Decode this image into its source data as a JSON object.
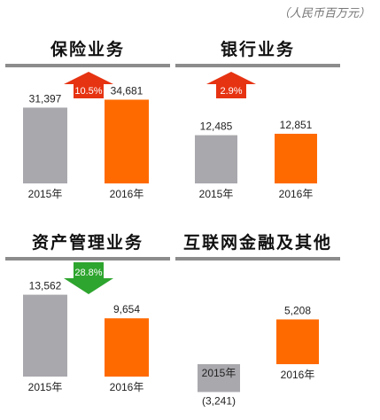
{
  "unit": "（人民币百万元）",
  "chart_data": [
    {
      "type": "bar",
      "title": "保险业务",
      "categories": [
        "2015年",
        "2016年"
      ],
      "values": [
        31397,
        34681
      ],
      "value_labels": [
        "31,397",
        "34,681"
      ],
      "growth": {
        "label": "10.5%",
        "direction": "up",
        "color": "#e63312"
      },
      "ylim": [
        0,
        40000
      ]
    },
    {
      "type": "bar",
      "title": "银行业务",
      "categories": [
        "2015年",
        "2016年"
      ],
      "values": [
        12485,
        12851
      ],
      "value_labels": [
        "12,485",
        "12,851"
      ],
      "growth": {
        "label": "2.9%",
        "direction": "up",
        "color": "#e63312"
      },
      "ylim": [
        0,
        25000
      ]
    },
    {
      "type": "bar",
      "title": "资产管理业务",
      "categories": [
        "2015年",
        "2016年"
      ],
      "values": [
        13562,
        9654
      ],
      "value_labels": [
        "13,562",
        "9,654"
      ],
      "growth": {
        "label": "28.8%",
        "direction": "down",
        "color": "#2ea52e"
      },
      "ylim": [
        0,
        16000
      ]
    },
    {
      "type": "bar",
      "title": "互联网金融及其他",
      "categories": [
        "2015年",
        "2016年"
      ],
      "values": [
        -3241,
        5208
      ],
      "value_labels": [
        "(3,241)",
        "5,208"
      ],
      "ylim": [
        -4000,
        10000
      ]
    }
  ],
  "colors": {
    "bar_2015": "#a9a8ad",
    "bar_2016": "#ff6a00"
  }
}
